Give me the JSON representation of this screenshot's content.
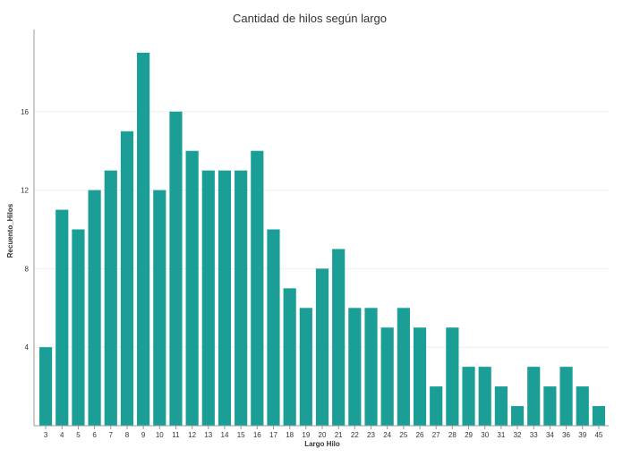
{
  "chart_data": {
    "type": "bar",
    "title": "Cantidad de hilos según largo",
    "xlabel": "Largo Hilo",
    "ylabel": "Recuento_Hilos",
    "categories": [
      "3",
      "4",
      "5",
      "6",
      "7",
      "8",
      "9",
      "10",
      "11",
      "12",
      "13",
      "14",
      "15",
      "16",
      "17",
      "18",
      "19",
      "20",
      "21",
      "22",
      "23",
      "24",
      "25",
      "26",
      "27",
      "28",
      "29",
      "30",
      "31",
      "32",
      "33",
      "34",
      "36",
      "39",
      "45"
    ],
    "values": [
      4,
      11,
      10,
      12,
      13,
      15,
      19,
      12,
      16,
      14,
      13,
      13,
      13,
      14,
      10,
      7,
      6,
      8,
      9,
      6,
      6,
      5,
      6,
      5,
      2,
      5,
      3,
      3,
      2,
      1,
      3,
      2,
      3,
      2,
      1
    ],
    "ylim": [
      0,
      20
    ],
    "yticks": [
      4,
      8,
      12,
      16
    ],
    "grid": true,
    "bar_color": "#1a9e96"
  }
}
